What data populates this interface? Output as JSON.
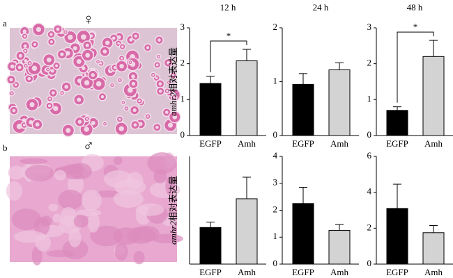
{
  "panels": [
    {
      "label": "a",
      "symbol": "♀"
    },
    {
      "label": "b",
      "symbol": "♂"
    }
  ],
  "chart_data": [
    {
      "type": "bar",
      "title": "12 h",
      "ylabel_gene": "amhr2",
      "ylabel": "相对表达量",
      "categories": [
        "EGFP",
        "Amh"
      ],
      "values": [
        1.45,
        2.08
      ],
      "errors": [
        0.2,
        0.32
      ],
      "colors": [
        "#000000",
        "#d3d3d3"
      ],
      "ylim": [
        0,
        3
      ],
      "yticks": [
        0,
        1,
        2,
        3
      ],
      "significance": "*"
    },
    {
      "type": "bar",
      "title": "24 h",
      "categories": [
        "EGFP",
        "Amh"
      ],
      "values": [
        0.95,
        1.22
      ],
      "errors": [
        0.2,
        0.13
      ],
      "colors": [
        "#000000",
        "#d3d3d3"
      ],
      "ylim": [
        0,
        2
      ],
      "yticks": [
        0,
        1,
        2
      ]
    },
    {
      "type": "bar",
      "title": "48 h",
      "categories": [
        "EGFP",
        "Amh"
      ],
      "values": [
        0.7,
        2.2
      ],
      "errors": [
        0.1,
        0.45
      ],
      "colors": [
        "#000000",
        "#d3d3d3"
      ],
      "ylim": [
        0,
        3
      ],
      "yticks": [
        0,
        1,
        2,
        3
      ],
      "significance": "*"
    },
    {
      "type": "bar",
      "ylabel_gene": "amhr2",
      "ylabel": "相对表达量",
      "categories": [
        "EGFP",
        "Amh"
      ],
      "values": [
        1.02,
        1.82
      ],
      "errors": [
        0.15,
        0.6
      ],
      "colors": [
        "#000000",
        "#d3d3d3"
      ],
      "ylim": [
        0,
        3
      ]
    },
    {
      "type": "bar",
      "categories": [
        "EGFP",
        "Amh"
      ],
      "values": [
        2.25,
        1.25
      ],
      "errors": [
        0.6,
        0.22
      ],
      "colors": [
        "#000000",
        "#d3d3d3"
      ],
      "ylim": [
        0,
        4
      ],
      "yticks": [
        0,
        1,
        2,
        3,
        4
      ]
    },
    {
      "type": "bar",
      "categories": [
        "EGFP",
        "Amh"
      ],
      "values": [
        3.1,
        1.75
      ],
      "errors": [
        1.35,
        0.4
      ],
      "colors": [
        "#000000",
        "#d3d3d3"
      ],
      "ylim": [
        0,
        6
      ],
      "yticks": [
        0,
        2,
        4,
        6
      ]
    }
  ]
}
